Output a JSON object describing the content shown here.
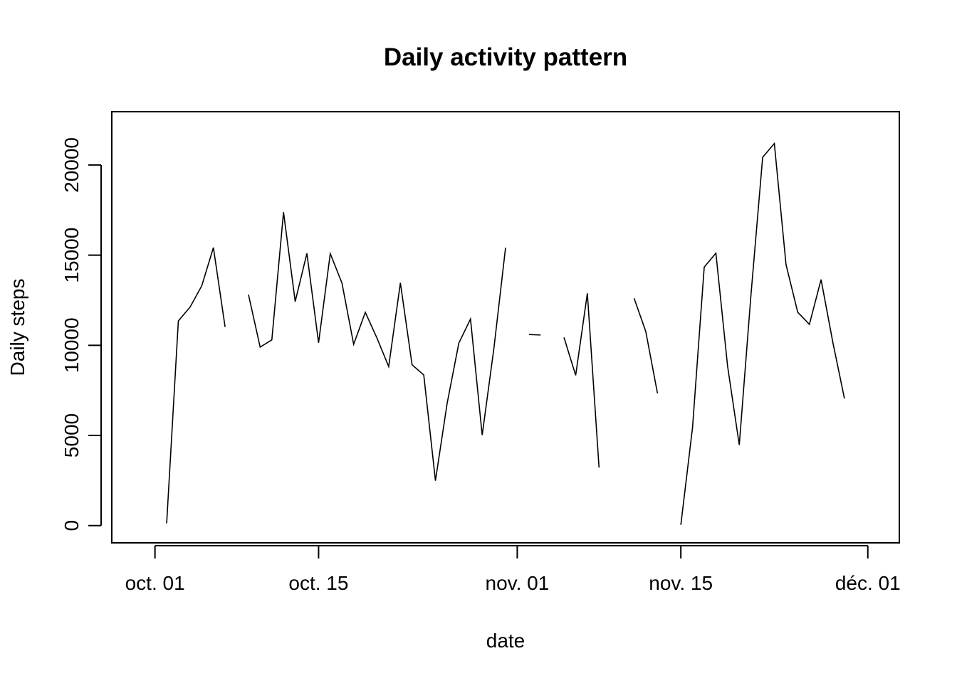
{
  "chart_data": {
    "type": "line",
    "title": "Daily activity pattern",
    "xlabel": "date",
    "ylabel": "Daily steps",
    "xlim": [
      "2012-09-30",
      "2012-12-01"
    ],
    "ylim": [
      0,
      22000
    ],
    "x_ticks": [
      {
        "date": "2012-10-01",
        "label": "oct. 01"
      },
      {
        "date": "2012-10-15",
        "label": "oct. 15"
      },
      {
        "date": "2012-11-01",
        "label": "nov. 01"
      },
      {
        "date": "2012-11-15",
        "label": "nov. 15"
      },
      {
        "date": "2012-12-01",
        "label": "déc. 01"
      }
    ],
    "y_ticks": [
      0,
      5000,
      10000,
      15000,
      20000
    ],
    "grid": false,
    "legend": "none",
    "series": [
      {
        "color": "#000000",
        "points": [
          {
            "date": "2012-10-01",
            "steps": null
          },
          {
            "date": "2012-10-02",
            "steps": 126
          },
          {
            "date": "2012-10-03",
            "steps": 11352
          },
          {
            "date": "2012-10-04",
            "steps": 12116
          },
          {
            "date": "2012-10-05",
            "steps": 13294
          },
          {
            "date": "2012-10-06",
            "steps": 15420
          },
          {
            "date": "2012-10-07",
            "steps": 11015
          },
          {
            "date": "2012-10-08",
            "steps": null
          },
          {
            "date": "2012-10-09",
            "steps": 12811
          },
          {
            "date": "2012-10-10",
            "steps": 9900
          },
          {
            "date": "2012-10-11",
            "steps": 10304
          },
          {
            "date": "2012-10-12",
            "steps": 17382
          },
          {
            "date": "2012-10-13",
            "steps": 12426
          },
          {
            "date": "2012-10-14",
            "steps": 15098
          },
          {
            "date": "2012-10-15",
            "steps": 10139
          },
          {
            "date": "2012-10-16",
            "steps": 15084
          },
          {
            "date": "2012-10-17",
            "steps": 13452
          },
          {
            "date": "2012-10-18",
            "steps": 10056
          },
          {
            "date": "2012-10-19",
            "steps": 11829
          },
          {
            "date": "2012-10-20",
            "steps": 10395
          },
          {
            "date": "2012-10-21",
            "steps": 8821
          },
          {
            "date": "2012-10-22",
            "steps": 13460
          },
          {
            "date": "2012-10-23",
            "steps": 8918
          },
          {
            "date": "2012-10-24",
            "steps": 8355
          },
          {
            "date": "2012-10-25",
            "steps": 2492
          },
          {
            "date": "2012-10-26",
            "steps": 6778
          },
          {
            "date": "2012-10-27",
            "steps": 10119
          },
          {
            "date": "2012-10-28",
            "steps": 11458
          },
          {
            "date": "2012-10-29",
            "steps": 5018
          },
          {
            "date": "2012-10-30",
            "steps": 9819
          },
          {
            "date": "2012-10-31",
            "steps": 15414
          },
          {
            "date": "2012-11-01",
            "steps": null
          },
          {
            "date": "2012-11-02",
            "steps": 10600
          },
          {
            "date": "2012-11-03",
            "steps": 10571
          },
          {
            "date": "2012-11-04",
            "steps": null
          },
          {
            "date": "2012-11-05",
            "steps": 10439
          },
          {
            "date": "2012-11-06",
            "steps": 8334
          },
          {
            "date": "2012-11-07",
            "steps": 12883
          },
          {
            "date": "2012-11-08",
            "steps": 3219
          },
          {
            "date": "2012-11-09",
            "steps": null
          },
          {
            "date": "2012-11-10",
            "steps": null
          },
          {
            "date": "2012-11-11",
            "steps": 12608
          },
          {
            "date": "2012-11-12",
            "steps": 10765
          },
          {
            "date": "2012-11-13",
            "steps": 7336
          },
          {
            "date": "2012-11-14",
            "steps": null
          },
          {
            "date": "2012-11-15",
            "steps": 41
          },
          {
            "date": "2012-11-16",
            "steps": 5441
          },
          {
            "date": "2012-11-17",
            "steps": 14339
          },
          {
            "date": "2012-11-18",
            "steps": 15110
          },
          {
            "date": "2012-11-19",
            "steps": 8841
          },
          {
            "date": "2012-11-20",
            "steps": 4472
          },
          {
            "date": "2012-11-21",
            "steps": 12787
          },
          {
            "date": "2012-11-22",
            "steps": 20427
          },
          {
            "date": "2012-11-23",
            "steps": 21194
          },
          {
            "date": "2012-11-24",
            "steps": 14478
          },
          {
            "date": "2012-11-25",
            "steps": 11834
          },
          {
            "date": "2012-11-26",
            "steps": 11162
          },
          {
            "date": "2012-11-27",
            "steps": 13646
          },
          {
            "date": "2012-11-28",
            "steps": 10183
          },
          {
            "date": "2012-11-29",
            "steps": 7047
          },
          {
            "date": "2012-11-30",
            "steps": null
          }
        ]
      }
    ]
  }
}
